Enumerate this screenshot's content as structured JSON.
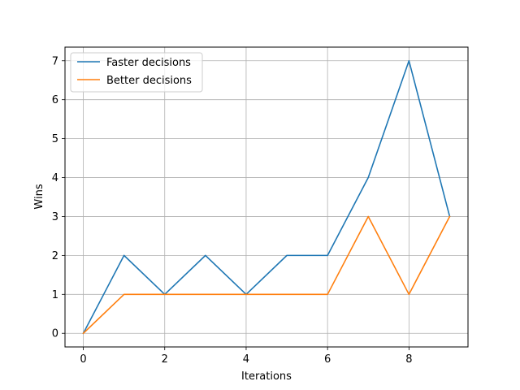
{
  "chart_data": {
    "type": "line",
    "title": "",
    "xlabel": "Iterations",
    "ylabel": "Wins",
    "x": [
      0,
      1,
      2,
      3,
      4,
      5,
      6,
      7,
      8,
      9
    ],
    "xlim": [
      -0.45,
      9.45
    ],
    "ylim": [
      -0.35,
      7.35
    ],
    "xticks": [
      0,
      2,
      4,
      6,
      8
    ],
    "xtick_labels": [
      "0",
      "2",
      "4",
      "6",
      "8"
    ],
    "yticks": [
      0,
      1,
      2,
      3,
      4,
      5,
      6,
      7
    ],
    "ytick_labels": [
      "0",
      "1",
      "2",
      "3",
      "4",
      "5",
      "6",
      "7"
    ],
    "grid": true,
    "legend_position": "top-left",
    "series": [
      {
        "name": "Faster decisions",
        "color": "#1f77b4",
        "values": [
          0,
          2,
          1,
          2,
          1,
          2,
          2,
          4,
          7,
          3
        ]
      },
      {
        "name": "Better decisions",
        "color": "#ff7f0e",
        "values": [
          0,
          1,
          1,
          1,
          1,
          1,
          1,
          3,
          1,
          3
        ]
      }
    ]
  }
}
